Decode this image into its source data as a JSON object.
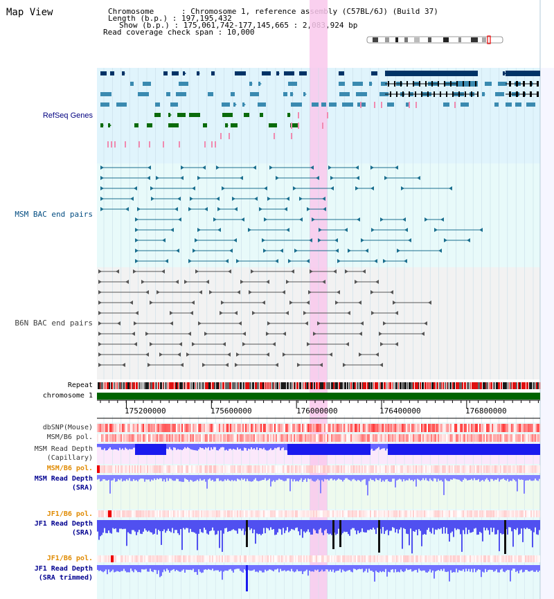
{
  "title": "Map View",
  "info": {
    "line1": "Chromosome      : Chromosome 1, reference assembly (C57BL/6J) (Build 37)",
    "line2": "Length (b.p.) : 197,195,432",
    "line3": "Show (b.p.) : 175,061,742-177,145,665 : 2,083,924 bp",
    "line4": "Read coverage check span : 10,000"
  },
  "tracks": {
    "refseq": "RefSeq Genes",
    "msm_bac": "MSM BAC end pairs",
    "b6n_bac": "B6N BAC end pairs",
    "repeat": "Repeat",
    "chromosome": "chromosome 1",
    "dbsnp": "dbSNP(Mouse)",
    "msm_pol": "MSM/B6 pol.",
    "msm_depth_cap_1": "MSM Read Depth",
    "msm_depth_cap_2": "(Capillary)",
    "msm_pol2": "MSM/B6 pol.",
    "msm_depth_sra_1": "MSM Read Depth",
    "msm_depth_sra_2": "(SRA)",
    "jf1_pol": "JF1/B6 pol.",
    "jf1_depth_1": "JF1 Read Depth",
    "jf1_depth_2": "(SRA)",
    "jf1_pol2": "JF1/B6 pol.",
    "jf1_trim_1": "JF1 Read Depth",
    "jf1_trim_2": "(SRA trimmed)"
  },
  "axis": {
    "ticks": [
      "175200000",
      "175600000",
      "176000000",
      "176400000",
      "176800000"
    ],
    "tick_values": [
      175200000,
      175600000,
      176000000,
      176400000,
      176800000
    ],
    "start": 175061742,
    "end": 177145665
  },
  "highlight_range": [
    175995000,
    176048000
  ],
  "colors": {
    "refseq_bg": "#e0f4fc",
    "bac_bg": "#e8fafa",
    "b6n_bg": "#f2f2f2",
    "highlight": "#f9c8ec",
    "chromosome": "#006400",
    "gene_dark": "#003366",
    "gene_mid": "#3a8ab0",
    "gene_green": "#0b6b0b",
    "depth_blue": "#0000e6"
  }
}
